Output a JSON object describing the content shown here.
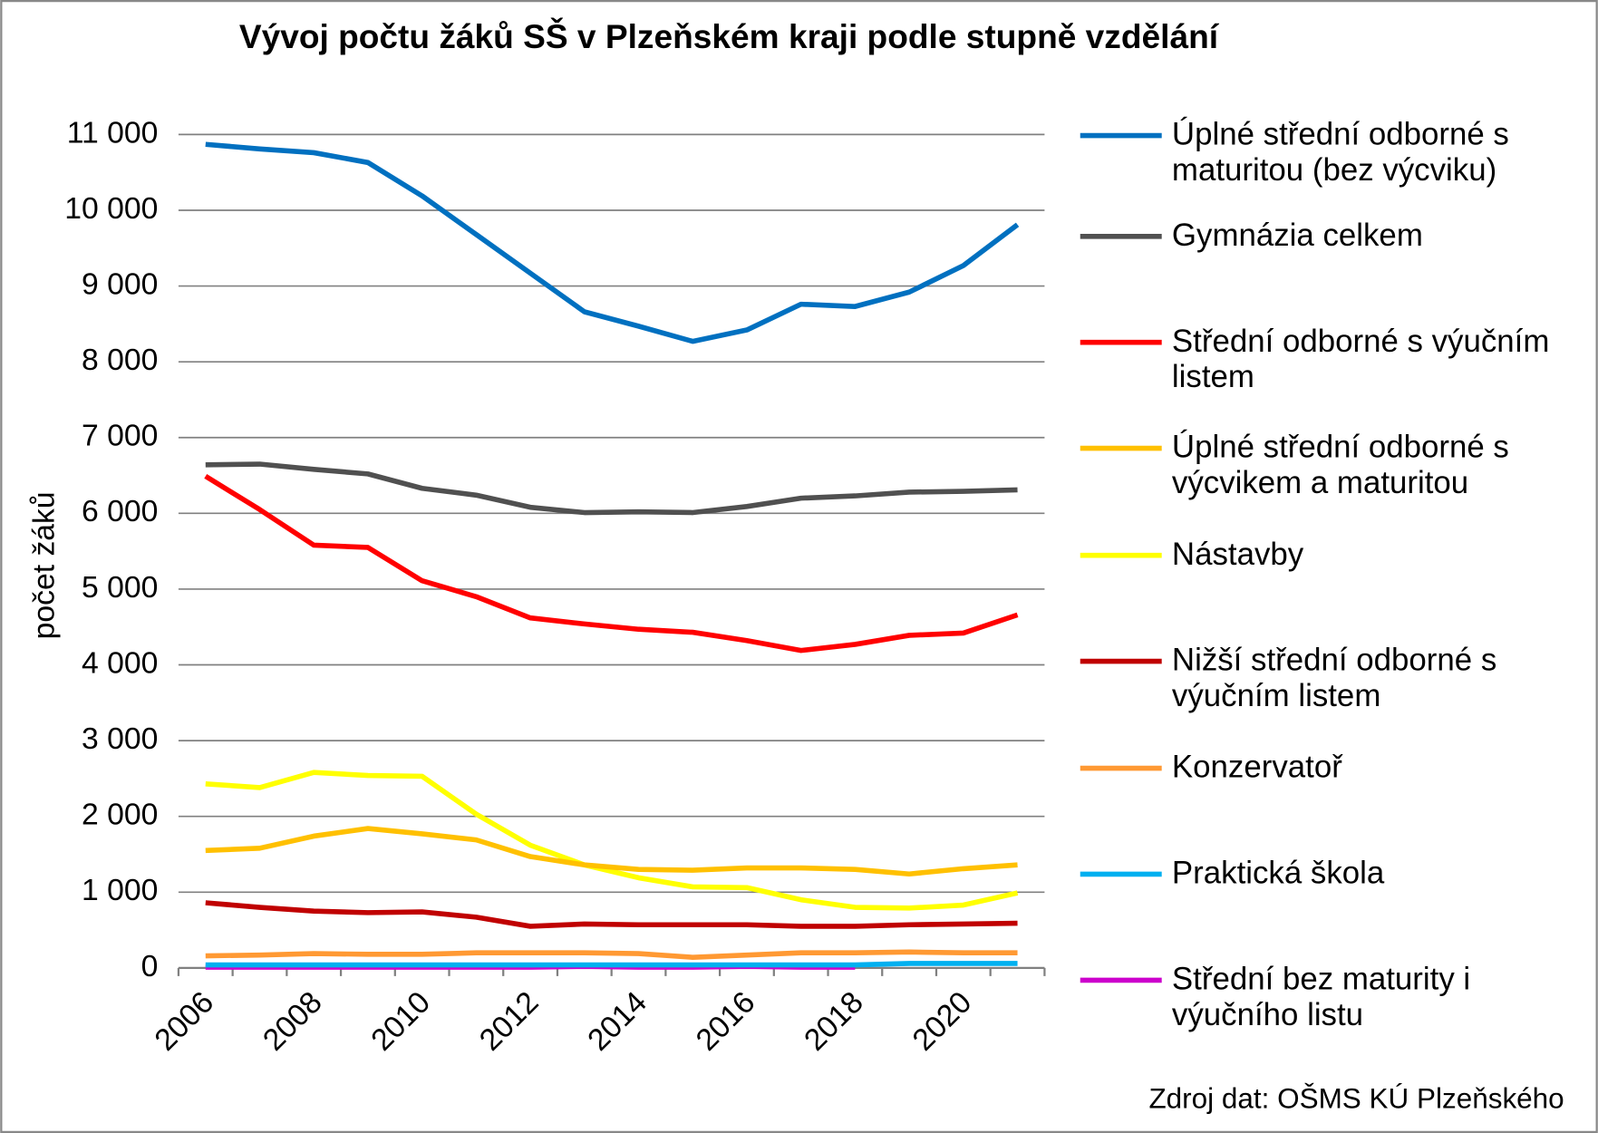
{
  "chart_data": {
    "type": "line",
    "title": "Vývoj počtu žáků SŠ v Plzeňském kraji podle stupně vzdělání",
    "y_label": "počet žáků",
    "source": "Zdroj dat: OŠMS KÚ Plzeňského",
    "categories": [
      "2006",
      null,
      "2008",
      null,
      "2010",
      null,
      "2012",
      null,
      "2014",
      null,
      "2016",
      null,
      "2018",
      null,
      "2020",
      null
    ],
    "ylim": [
      0,
      11000
    ],
    "yticks": [
      0,
      {
        "value": 1000,
        "label": "1 000"
      },
      {
        "value": 2000,
        "label": "2 000"
      },
      {
        "value": 3000,
        "label": "3 000"
      },
      {
        "value": 4000,
        "label": "4 000"
      },
      {
        "value": 5000,
        "label": "5 000"
      },
      {
        "value": 6000,
        "label": "6 000"
      },
      {
        "value": 7000,
        "label": "7 000"
      },
      {
        "value": 8000,
        "label": "8 000"
      },
      {
        "value": 9000,
        "label": "9 000"
      },
      {
        "value": 10000,
        "label": "10 000"
      },
      {
        "value": 11000,
        "label": "11 000"
      }
    ],
    "grid": true,
    "legend": "right",
    "series": [
      {
        "name": "Úplné střední odborné s maturitou (bez výcviku)",
        "color": "#0070c0",
        "values": [
          10870,
          10810,
          10760,
          10630,
          10190,
          9680,
          9170,
          8660,
          8470,
          8270,
          8420,
          8760,
          8730,
          8920,
          9270,
          9810
        ]
      },
      {
        "name": "Gymnázia celkem",
        "color": "#505050",
        "values": [
          6640,
          6650,
          6580,
          6520,
          6330,
          6240,
          6080,
          6010,
          6020,
          6010,
          6090,
          6200,
          6230,
          6280,
          6290,
          6310
        ]
      },
      {
        "name": "Střední odborné s výučním listem",
        "color": "#ff0000",
        "values": [
          6490,
          6050,
          5580,
          5550,
          5110,
          4900,
          4620,
          4540,
          4470,
          4430,
          4320,
          4190,
          4270,
          4390,
          4420,
          4660
        ]
      },
      {
        "name": "Úplné střední odborné s výcvikem a maturitou",
        "color": "#ffc000",
        "values": [
          1550,
          1580,
          1740,
          1840,
          1770,
          1690,
          1470,
          1360,
          1300,
          1290,
          1320,
          1320,
          1300,
          1240,
          1310,
          1360
        ]
      },
      {
        "name": "Nástavby",
        "color": "#ffff00",
        "values": [
          2430,
          2380,
          2580,
          2540,
          2530,
          2030,
          1620,
          1360,
          1190,
          1070,
          1060,
          900,
          800,
          790,
          830,
          990
        ]
      },
      {
        "name": "Nižší střední odborné s výučním listem",
        "color": "#c00000",
        "values": [
          860,
          800,
          750,
          730,
          740,
          670,
          550,
          580,
          570,
          570,
          570,
          550,
          550,
          570,
          580,
          590
        ]
      },
      {
        "name": "Konzervatoř",
        "color": "#ff9933",
        "values": [
          160,
          170,
          190,
          180,
          180,
          200,
          200,
          200,
          190,
          140,
          170,
          200,
          200,
          210,
          200,
          200
        ]
      },
      {
        "name": "Praktická škola",
        "color": "#00b0f0",
        "values": [
          40,
          40,
          40,
          40,
          40,
          40,
          40,
          40,
          40,
          40,
          40,
          40,
          40,
          60,
          60,
          60
        ]
      },
      {
        "name": "Střední bez maturity i výučního listu",
        "color": "#cc00cc",
        "values": [
          10,
          10,
          10,
          10,
          10,
          10,
          10,
          20,
          10,
          10,
          20,
          10,
          10,
          null,
          null,
          null
        ]
      }
    ]
  }
}
